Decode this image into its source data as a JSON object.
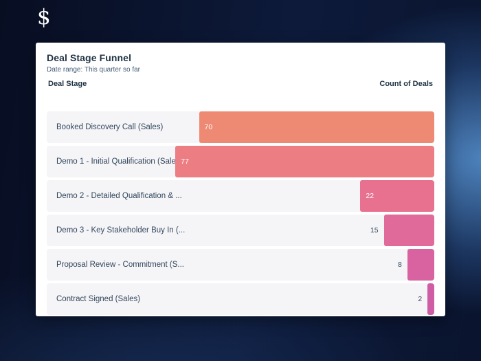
{
  "logo": {
    "symbol": "$"
  },
  "report": {
    "title": "Deal Stage Funnel",
    "subtitle": "Date range: This quarter so far",
    "col_left": "Deal Stage",
    "col_right": "Count of Deals"
  },
  "chart_data": {
    "type": "bar",
    "subtype": "horizontal-funnel-right-anchored",
    "title": "Deal Stage Funnel",
    "xlabel": "Count of Deals",
    "ylabel": "Deal Stage",
    "legend": "none",
    "grid": false,
    "max_value": 77,
    "inside_label_min_value": 20,
    "categories": [
      "Booked Discovery Call (Sales)",
      "Demo 1 - Initial Qualification (Sales)",
      "Demo 2 - Detailed Qualification & ...",
      "Demo 3 - Key Stakeholder Buy In (...",
      "Proposal Review - Commitment (S...",
      "Contract Signed (Sales)"
    ],
    "values": [
      70,
      77,
      22,
      15,
      8,
      2
    ],
    "bar_colors": [
      "#ee8a73",
      "#ec7e83",
      "#e7718f",
      "#e06a9a",
      "#d963a1",
      "#ce5da6"
    ],
    "row_background": "#f5f5f8"
  }
}
